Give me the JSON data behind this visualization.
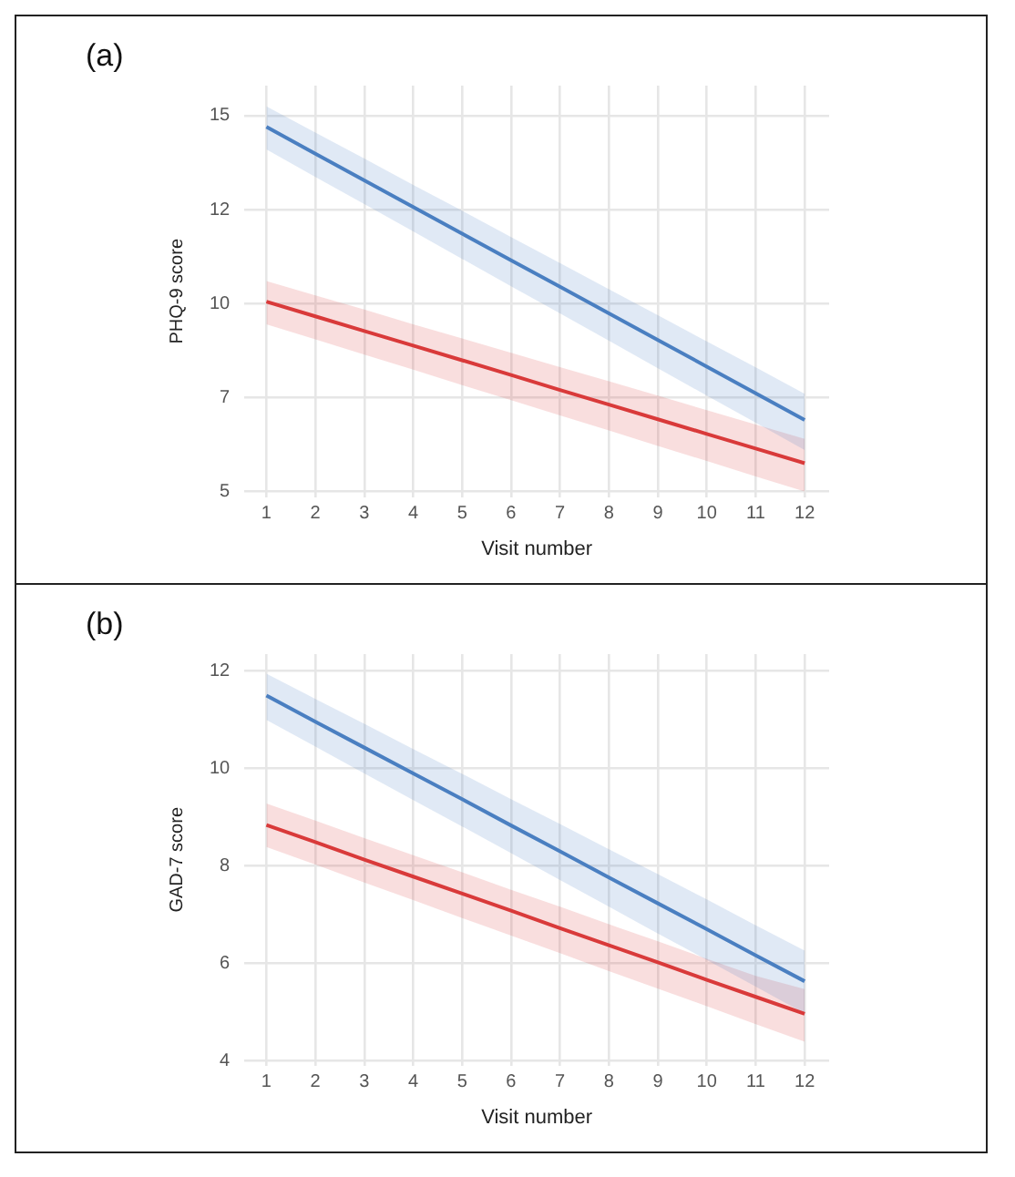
{
  "chart_data": [
    {
      "type": "line",
      "title": "(a)",
      "xlabel": "Visit number",
      "ylabel": "PHQ-9 score",
      "x": [
        1,
        2,
        3,
        4,
        5,
        6,
        7,
        8,
        9,
        10,
        11,
        12
      ],
      "xlim": [
        0.55,
        12.5
      ],
      "xticks": [
        1,
        2,
        3,
        4,
        5,
        6,
        7,
        8,
        9,
        10,
        11,
        12
      ],
      "ylim": [
        4.85,
        15.8
      ],
      "yticks": [
        5,
        {
          "value": 7.5,
          "label": "7"
        },
        10,
        {
          "value": 12.5,
          "label": "12"
        },
        15
      ],
      "grid": true,
      "legend": false,
      "marker": "none",
      "line_style": "solid",
      "series": [
        {
          "color": "#4a7fc1",
          "values": [
            14.7,
            13.99,
            13.28,
            12.57,
            11.86,
            11.15,
            10.45,
            9.74,
            9.03,
            8.32,
            7.61,
            6.9
          ],
          "lower": [
            14.1,
            13.37,
            12.65,
            11.92,
            11.19,
            10.46,
            9.74,
            9.01,
            8.28,
            7.55,
            6.83,
            6.1
          ],
          "upper": [
            15.25,
            14.55,
            13.86,
            13.16,
            12.47,
            11.77,
            11.08,
            10.38,
            9.69,
            8.99,
            8.3,
            7.6
          ]
        },
        {
          "color": "#d93a3a",
          "values": [
            10.05,
            9.66,
            9.27,
            8.88,
            8.49,
            8.1,
            7.7,
            7.31,
            6.92,
            6.53,
            6.14,
            5.75
          ],
          "lower": [
            9.45,
            9.05,
            8.64,
            8.24,
            7.83,
            7.43,
            7.02,
            6.62,
            6.21,
            5.81,
            5.4,
            5.0
          ],
          "upper": [
            10.6,
            10.22,
            9.84,
            9.45,
            9.07,
            8.69,
            8.31,
            7.93,
            7.55,
            7.16,
            6.78,
            6.4
          ]
        }
      ]
    },
    {
      "type": "line",
      "title": "(b)",
      "xlabel": "Visit number",
      "ylabel": "GAD-7 score",
      "x": [
        1,
        2,
        3,
        4,
        5,
        6,
        7,
        8,
        9,
        10,
        11,
        12
      ],
      "xlim": [
        0.55,
        12.5
      ],
      "xticks": [
        1,
        2,
        3,
        4,
        5,
        6,
        7,
        8,
        9,
        10,
        11,
        12
      ],
      "ylim": [
        3.9,
        12.35
      ],
      "yticks": [
        4,
        6,
        8,
        10,
        12
      ],
      "grid": true,
      "legend": false,
      "marker": "none",
      "line_style": "solid",
      "series": [
        {
          "color": "#4a7fc1",
          "values": [
            11.5,
            10.96,
            10.43,
            9.9,
            9.37,
            8.83,
            8.3,
            7.76,
            7.23,
            6.7,
            6.16,
            5.63
          ],
          "lower": [
            11.0,
            10.45,
            9.9,
            9.35,
            8.81,
            8.26,
            7.71,
            7.16,
            6.61,
            6.07,
            5.52,
            4.97
          ],
          "upper": [
            11.95,
            11.43,
            10.92,
            10.4,
            9.89,
            9.37,
            8.86,
            8.34,
            7.83,
            7.31,
            6.78,
            6.26
          ]
        },
        {
          "color": "#d93a3a",
          "values": [
            8.84,
            8.49,
            8.13,
            7.78,
            7.43,
            7.08,
            6.72,
            6.37,
            6.02,
            5.66,
            5.31,
            4.96
          ],
          "lower": [
            8.39,
            8.03,
            7.66,
            7.3,
            6.93,
            6.57,
            6.21,
            5.84,
            5.48,
            5.12,
            4.75,
            4.39
          ],
          "upper": [
            9.28,
            8.93,
            8.57,
            8.22,
            7.87,
            7.51,
            7.16,
            6.8,
            6.45,
            6.09,
            5.74,
            5.47
          ]
        }
      ]
    }
  ]
}
